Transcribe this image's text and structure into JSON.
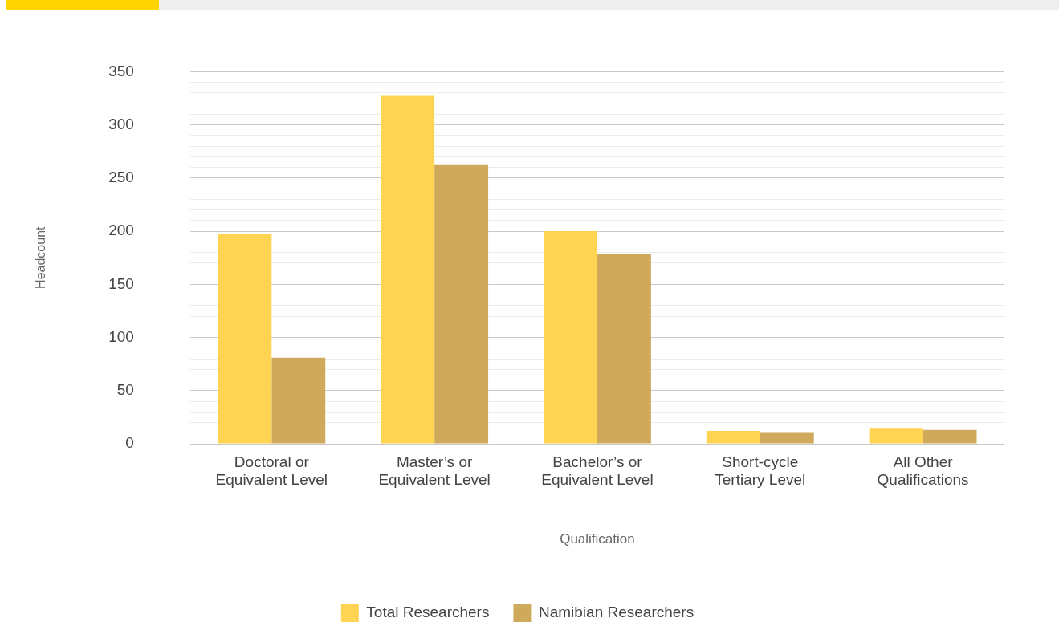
{
  "chart_data": {
    "type": "bar",
    "xlabel": "Qualification",
    "ylabel": "Headcount",
    "categories": [
      "Doctoral or\nEquivalent Level",
      "Master’s or\nEquivalent Level",
      "Bachelor’s or\nEquivalent Level",
      "Short-cycle\nTertiary Level",
      "All Other\nQualifications"
    ],
    "series": [
      {
        "name": "Total Researchers",
        "color": "#ffd452",
        "values": [
          197,
          328,
          200,
          12,
          15
        ]
      },
      {
        "name": "Namibian Researchers",
        "color": "#cfaa5c",
        "values": [
          81,
          263,
          179,
          11,
          13
        ]
      }
    ],
    "ylim": [
      0,
      350
    ],
    "yticks": [
      0,
      {
        "value": 10,
        "label": null
      },
      {
        "value": 20,
        "label": null
      },
      {
        "value": 30,
        "label": null
      },
      {
        "value": 40,
        "label": null
      },
      50,
      {
        "value": 60,
        "label": null
      },
      {
        "value": 70,
        "label": null
      },
      {
        "value": 80,
        "label": null
      },
      {
        "value": 90,
        "label": null
      },
      100,
      {
        "value": 110,
        "label": null
      },
      {
        "value": 120,
        "label": null
      },
      {
        "value": 130,
        "label": null
      },
      {
        "value": 140,
        "label": null
      },
      150,
      {
        "value": 160,
        "label": null
      },
      {
        "value": 170,
        "label": null
      },
      {
        "value": 180,
        "label": null
      },
      {
        "value": 190,
        "label": null
      },
      200,
      {
        "value": 210,
        "label": null
      },
      {
        "value": 220,
        "label": null
      },
      {
        "value": 230,
        "label": null
      },
      {
        "value": 240,
        "label": null
      },
      250,
      {
        "value": 260,
        "label": null
      },
      {
        "value": 270,
        "label": null
      },
      {
        "value": 280,
        "label": null
      },
      {
        "value": 290,
        "label": null
      },
      300,
      {
        "value": 310,
        "label": null
      },
      {
        "value": 320,
        "label": null
      },
      {
        "value": 330,
        "label": null
      },
      {
        "value": 340,
        "label": null
      },
      350
    ],
    "grid": "y",
    "legend": "bottom"
  }
}
